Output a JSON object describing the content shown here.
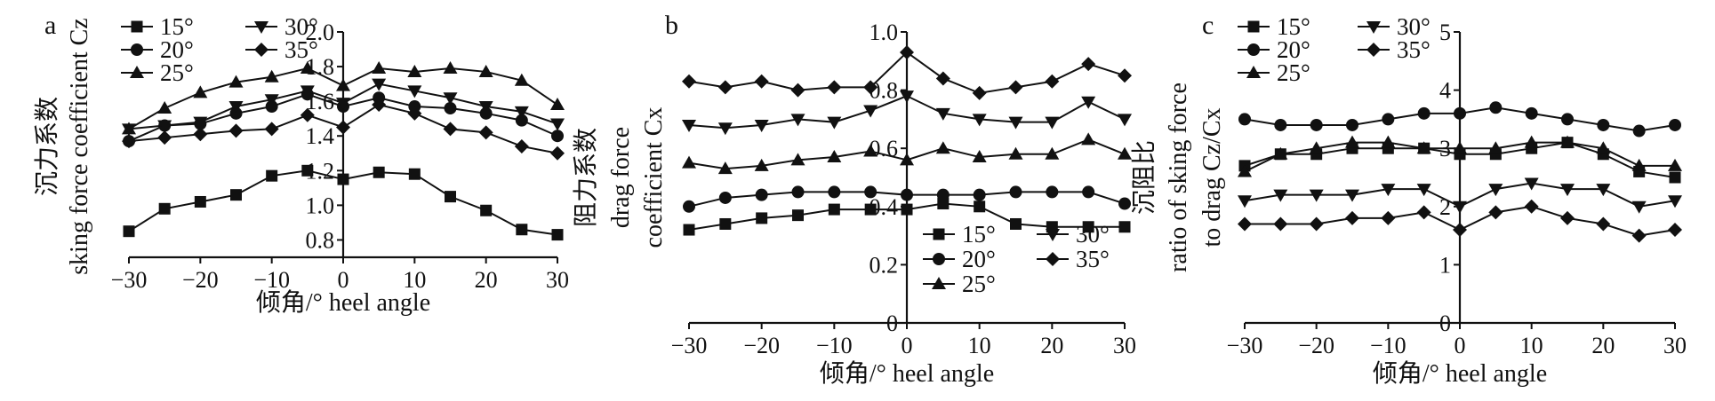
{
  "chart_data": [
    {
      "panel": "a",
      "type": "line",
      "xlabel": "倾角/° heel angle",
      "ylabel_lines": [
        "沉力系数",
        "sking force coefficient Cz"
      ],
      "xlim": [
        -30,
        30
      ],
      "ylim": [
        0.7,
        2.0
      ],
      "xticks": [
        "−30",
        "−20",
        "−10",
        "0",
        "10",
        "20",
        "30"
      ],
      "yticks": [
        "0.8",
        "1.0",
        "1.2",
        "1.4",
        "1.6",
        "1.8",
        "2.0"
      ],
      "legend_position": "top-left",
      "x": [
        -30,
        -25,
        -20,
        -15,
        -10,
        -5,
        0,
        5,
        10,
        15,
        20,
        25,
        30
      ],
      "series": [
        {
          "name": "15°",
          "marker": "square",
          "values": [
            0.85,
            0.98,
            1.02,
            1.06,
            1.17,
            1.2,
            1.15,
            1.19,
            1.18,
            1.05,
            0.97,
            0.86,
            0.83
          ]
        },
        {
          "name": "20°",
          "marker": "circle",
          "values": [
            1.37,
            1.46,
            1.47,
            1.53,
            1.57,
            1.64,
            1.57,
            1.62,
            1.57,
            1.56,
            1.53,
            1.49,
            1.4
          ]
        },
        {
          "name": "25°",
          "marker": "triangle-up",
          "values": [
            1.44,
            1.56,
            1.65,
            1.71,
            1.74,
            1.79,
            1.69,
            1.79,
            1.77,
            1.79,
            1.77,
            1.72,
            1.58
          ]
        },
        {
          "name": "30°",
          "marker": "triangle-down",
          "values": [
            1.44,
            1.46,
            1.48,
            1.57,
            1.61,
            1.66,
            1.59,
            1.7,
            1.66,
            1.62,
            1.57,
            1.54,
            1.47
          ]
        },
        {
          "name": "35°",
          "marker": "diamond",
          "values": [
            1.37,
            1.39,
            1.41,
            1.43,
            1.44,
            1.52,
            1.45,
            1.58,
            1.53,
            1.44,
            1.42,
            1.34,
            1.3
          ]
        }
      ]
    },
    {
      "panel": "b",
      "type": "line",
      "xlabel": "倾角/° heel angle",
      "ylabel_lines": [
        "阻力系数",
        "drag force",
        "coefficient Cx"
      ],
      "xlim": [
        -30,
        30
      ],
      "ylim": [
        0,
        1.0
      ],
      "xticks": [
        "−30",
        "−20",
        "−10",
        "0",
        "10",
        "20",
        "30"
      ],
      "yticks": [
        "0",
        "0.2",
        "0.4",
        "0.6",
        "0.8",
        "1.0"
      ],
      "legend_position": "bottom-right",
      "x": [
        -30,
        -25,
        -20,
        -15,
        -10,
        -5,
        0,
        5,
        10,
        15,
        20,
        25,
        30
      ],
      "series": [
        {
          "name": "15°",
          "marker": "square",
          "values": [
            0.32,
            0.34,
            0.36,
            0.37,
            0.39,
            0.39,
            0.39,
            0.41,
            0.4,
            0.34,
            0.33,
            0.33,
            0.33
          ]
        },
        {
          "name": "20°",
          "marker": "circle",
          "values": [
            0.4,
            0.43,
            0.44,
            0.45,
            0.45,
            0.45,
            0.44,
            0.44,
            0.44,
            0.45,
            0.45,
            0.45,
            0.41
          ]
        },
        {
          "name": "25°",
          "marker": "triangle-up",
          "values": [
            0.55,
            0.53,
            0.54,
            0.56,
            0.57,
            0.59,
            0.56,
            0.6,
            0.57,
            0.58,
            0.58,
            0.63,
            0.58
          ]
        },
        {
          "name": "30°",
          "marker": "triangle-down",
          "values": [
            0.68,
            0.67,
            0.68,
            0.7,
            0.69,
            0.73,
            0.78,
            0.72,
            0.7,
            0.69,
            0.69,
            0.76,
            0.7
          ]
        },
        {
          "name": "35°",
          "marker": "diamond",
          "values": [
            0.83,
            0.81,
            0.83,
            0.8,
            0.81,
            0.81,
            0.93,
            0.84,
            0.79,
            0.81,
            0.83,
            0.89,
            0.85
          ]
        }
      ]
    },
    {
      "panel": "c",
      "type": "line",
      "xlabel": "倾角/° heel angle",
      "ylabel_lines": [
        "沉阻比",
        "ratio of sking force",
        "to drag Cz/Cx"
      ],
      "xlim": [
        -30,
        30
      ],
      "ylim": [
        0,
        5
      ],
      "xticks": [
        "−30",
        "−20",
        "−10",
        "0",
        "10",
        "20",
        "30"
      ],
      "yticks": [
        "0",
        "1",
        "2",
        "3",
        "4",
        "5"
      ],
      "legend_position": "top-left",
      "x": [
        -30,
        -25,
        -20,
        -15,
        -10,
        -5,
        0,
        5,
        10,
        15,
        20,
        25,
        30
      ],
      "series": [
        {
          "name": "15°",
          "marker": "square",
          "values": [
            2.7,
            2.9,
            2.9,
            3.0,
            3.0,
            3.0,
            2.9,
            2.9,
            3.0,
            3.1,
            2.9,
            2.6,
            2.5
          ]
        },
        {
          "name": "20°",
          "marker": "circle",
          "values": [
            3.5,
            3.4,
            3.4,
            3.4,
            3.5,
            3.6,
            3.6,
            3.7,
            3.6,
            3.5,
            3.4,
            3.3,
            3.4
          ]
        },
        {
          "name": "25°",
          "marker": "triangle-up",
          "values": [
            2.6,
            2.9,
            3.0,
            3.1,
            3.1,
            3.0,
            3.0,
            3.0,
            3.1,
            3.1,
            3.0,
            2.7,
            2.7
          ]
        },
        {
          "name": "30°",
          "marker": "triangle-down",
          "values": [
            2.1,
            2.2,
            2.2,
            2.2,
            2.3,
            2.3,
            2.0,
            2.3,
            2.4,
            2.3,
            2.3,
            2.0,
            2.1
          ]
        },
        {
          "name": "35°",
          "marker": "diamond",
          "values": [
            1.7,
            1.7,
            1.7,
            1.8,
            1.8,
            1.9,
            1.6,
            1.9,
            2.0,
            1.8,
            1.7,
            1.5,
            1.6
          ]
        }
      ]
    }
  ]
}
